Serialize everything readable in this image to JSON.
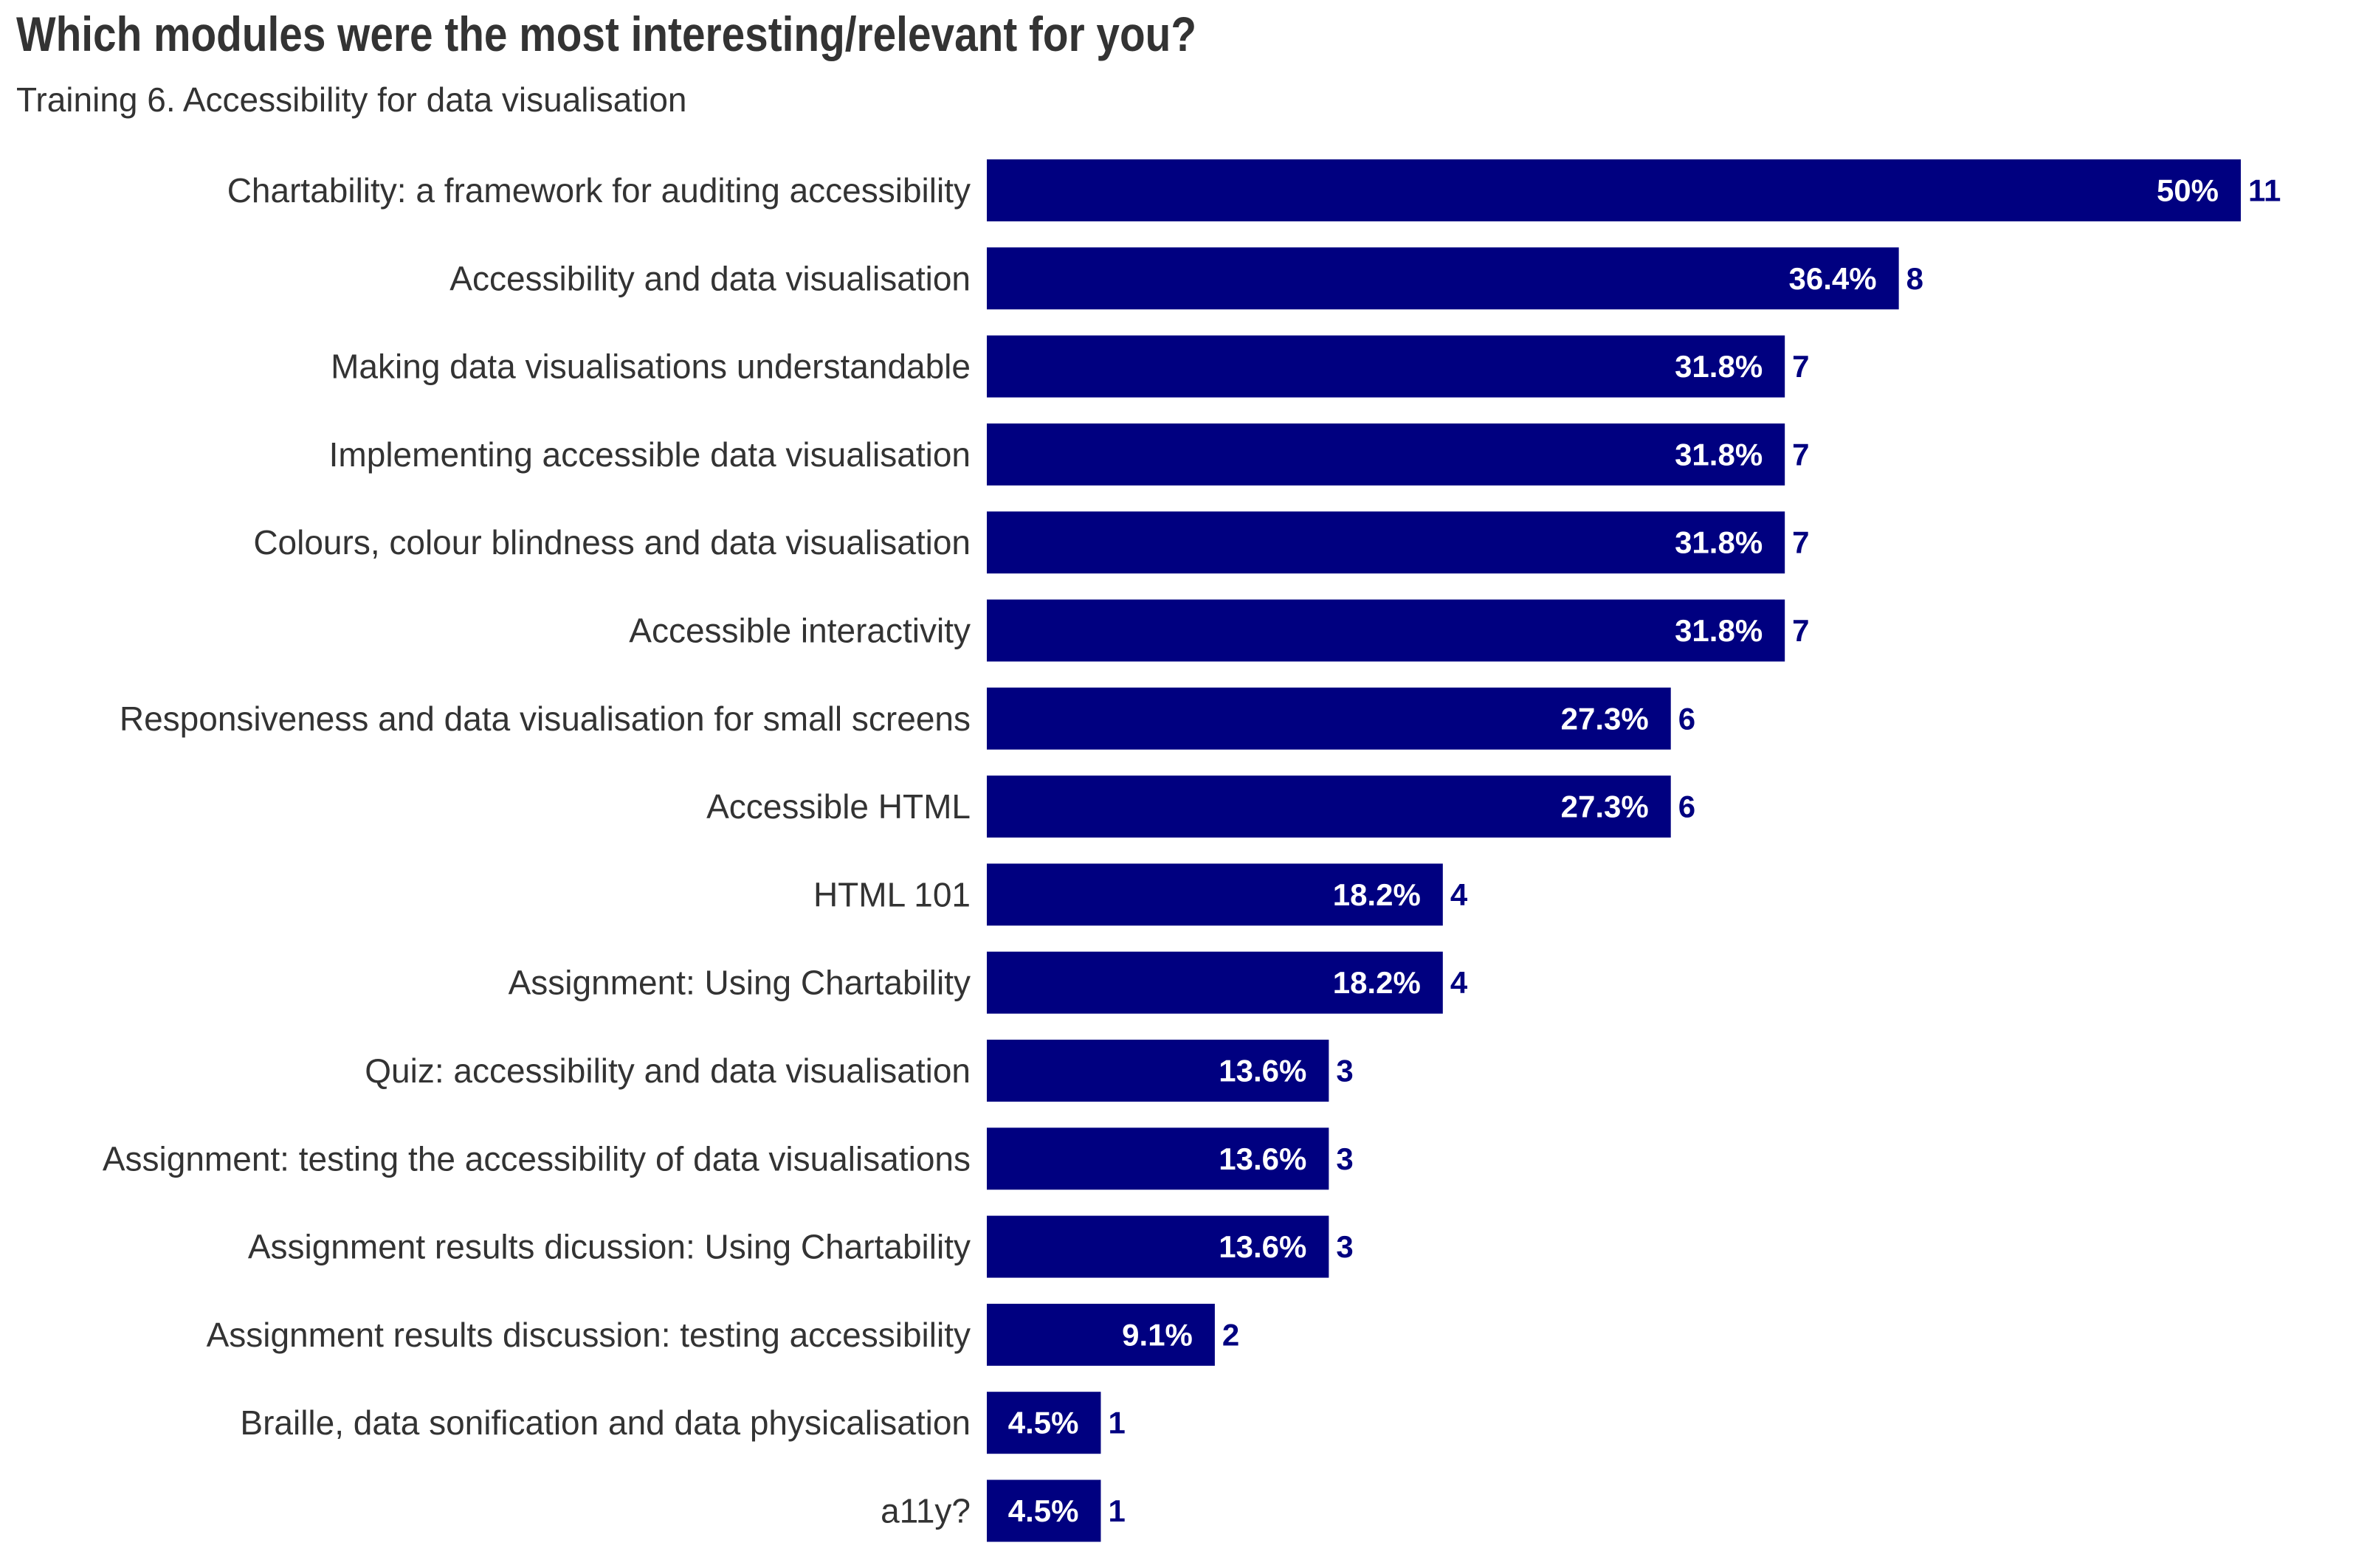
{
  "chart_data": {
    "type": "bar",
    "orientation": "horizontal",
    "title": "Which modules were the most interesting/relevant for you?",
    "subtitle": "Training 6. Accessibility for data visualisation",
    "bar_color": "#000080",
    "count_label_color": "#000080",
    "percent_label_color": "#ffffff",
    "categories": [
      "Chartability: a framework for auditing accessibility",
      "Accessibility and data visualisation",
      "Making data visualisations understandable",
      "Implementing accessible data visualisation",
      "Colours, colour blindness and data visualisation",
      "Accessible interactivity",
      "Responsiveness and data visualisation for small screens",
      "Accessible HTML",
      "HTML 101",
      "Assignment: Using Chartability",
      "Quiz: accessibility and data visualisation",
      "Assignment: testing the accessibility of data visualisations",
      "Assignment results dicussion: Using Chartability",
      "Assignment results discussion: testing accessibility",
      "Braille, data sonification and data physicalisation",
      "a11y?"
    ],
    "values": [
      11,
      8,
      7,
      7,
      7,
      7,
      6,
      6,
      4,
      4,
      3,
      3,
      3,
      2,
      1,
      1
    ],
    "percent_labels": [
      "50%",
      "36.4%",
      "31.8%",
      "31.8%",
      "31.8%",
      "31.8%",
      "27.3%",
      "27.3%",
      "18.2%",
      "18.2%",
      "13.6%",
      "13.6%",
      "13.6%",
      "9.1%",
      "4.5%",
      "4.5%"
    ],
    "count_labels": [
      "11",
      "8",
      "7",
      "7",
      "7",
      "7",
      "6",
      "6",
      "4",
      "4",
      "3",
      "3",
      "3",
      "2",
      "1",
      "1"
    ],
    "xlim": [
      0,
      11
    ],
    "grid": false,
    "legend": "none"
  }
}
